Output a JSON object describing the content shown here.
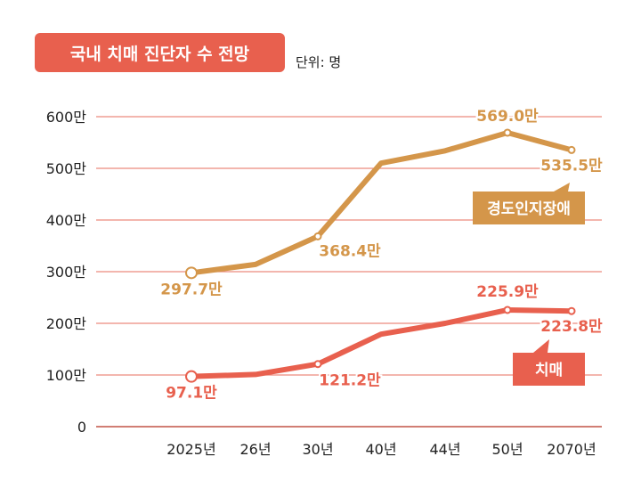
{
  "chart_data": {
    "type": "line",
    "title": "국내 치매 진단자 수 전망",
    "unit_note": "단위: 명",
    "categories": [
      "2025년",
      "26년",
      "30년",
      "40년",
      "44년",
      "50년",
      "2070년"
    ],
    "y_ticks": [
      "0",
      "100만",
      "200만",
      "300만",
      "400만",
      "500만",
      "600만"
    ],
    "ylim": [
      0,
      600
    ],
    "y_unit": "만",
    "grid": true,
    "series": [
      {
        "name": "경도인지장애",
        "color": "#d4964a",
        "values": [
          297.7,
          314,
          368.4,
          510,
          534,
          569.0,
          535.5
        ],
        "labels": [
          "297.7만",
          null,
          "368.4만",
          null,
          null,
          "569.0만",
          "535.5만"
        ]
      },
      {
        "name": "치매",
        "color": "#e8604e",
        "values": [
          97.1,
          101,
          121.2,
          179,
          200,
          225.9,
          223.8
        ],
        "labels": [
          "97.1만",
          null,
          "121.2만",
          null,
          null,
          "225.9만",
          "223.8만"
        ]
      }
    ]
  }
}
